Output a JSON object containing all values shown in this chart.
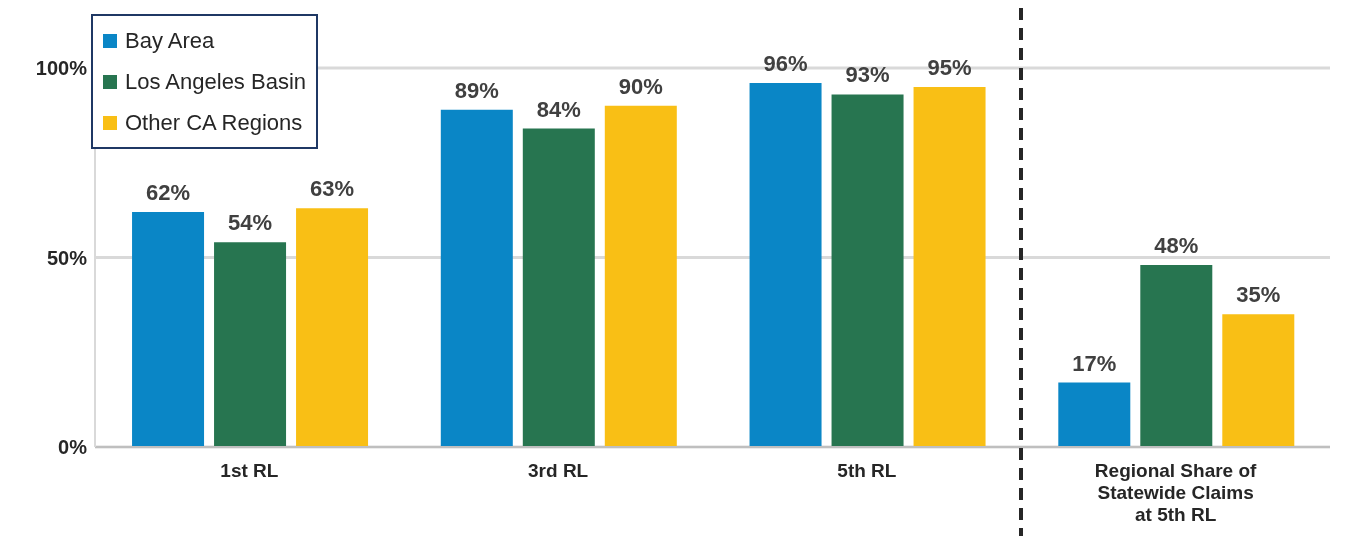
{
  "chart_data": {
    "type": "bar",
    "categories": [
      "1st RL",
      "3rd RL",
      "5th RL",
      "Regional Share of Statewide Claims at 5th RL"
    ],
    "series": [
      {
        "name": "Bay Area",
        "color": "#0a86c6",
        "values": [
          62,
          89,
          96,
          17
        ],
        "value_labels": [
          "62%",
          "89%",
          "96%",
          "17%"
        ]
      },
      {
        "name": "Los Angeles Basin",
        "color": "#277550",
        "values": [
          54,
          84,
          93,
          48
        ],
        "value_labels": [
          "54%",
          "84%",
          "93%",
          "48%"
        ]
      },
      {
        "name": "Other CA Regions",
        "color": "#f9bf15",
        "values": [
          63,
          90,
          95,
          35
        ],
        "value_labels": [
          "63%",
          "90%",
          "95%",
          "35%"
        ]
      }
    ],
    "ylim": [
      0,
      105
    ],
    "yticks": [
      {
        "value": 0,
        "label": "0%"
      },
      {
        "value": 50,
        "label": "50%"
      },
      {
        "value": 100,
        "label": "100%"
      }
    ],
    "grid": "y",
    "legend": "top left"
  }
}
